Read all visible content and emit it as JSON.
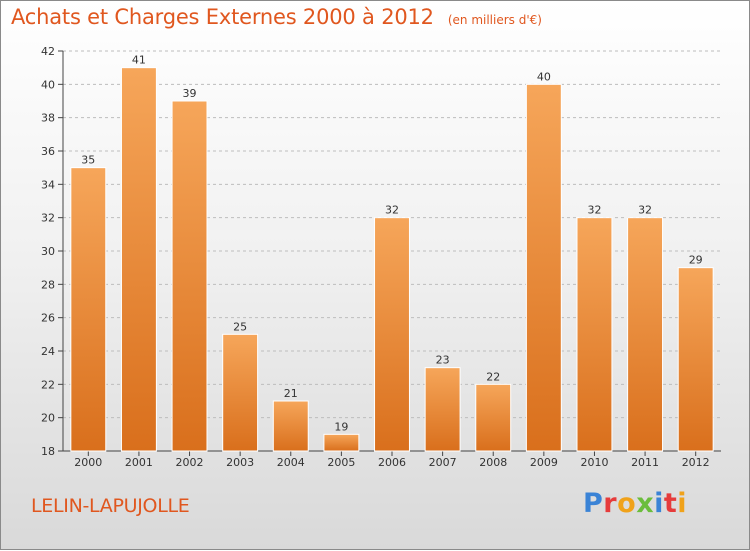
{
  "title": "Achats et Charges Externes 2000 à 2012",
  "unit": "(en milliers d'€)",
  "city": "LELIN-LAPUJOLLE",
  "logo": {
    "text": "Proxiti"
  },
  "colors": {
    "title": "#e0571f",
    "bar_top": "#f6a65a",
    "bar_bottom": "#d96f1c",
    "grid": "#bdbdbd"
  },
  "chart_data": {
    "type": "bar",
    "categories": [
      "2000",
      "2001",
      "2002",
      "2003",
      "2004",
      "2005",
      "2006",
      "2007",
      "2008",
      "2009",
      "2010",
      "2011",
      "2012"
    ],
    "values": [
      35,
      41,
      39,
      25,
      21,
      19,
      32,
      23,
      22,
      40,
      32,
      32,
      29
    ],
    "ylim": [
      18,
      42
    ],
    "yticks": [
      18,
      20,
      22,
      24,
      26,
      28,
      30,
      32,
      34,
      36,
      38,
      40,
      42
    ],
    "grid": true,
    "data_labels": true
  }
}
